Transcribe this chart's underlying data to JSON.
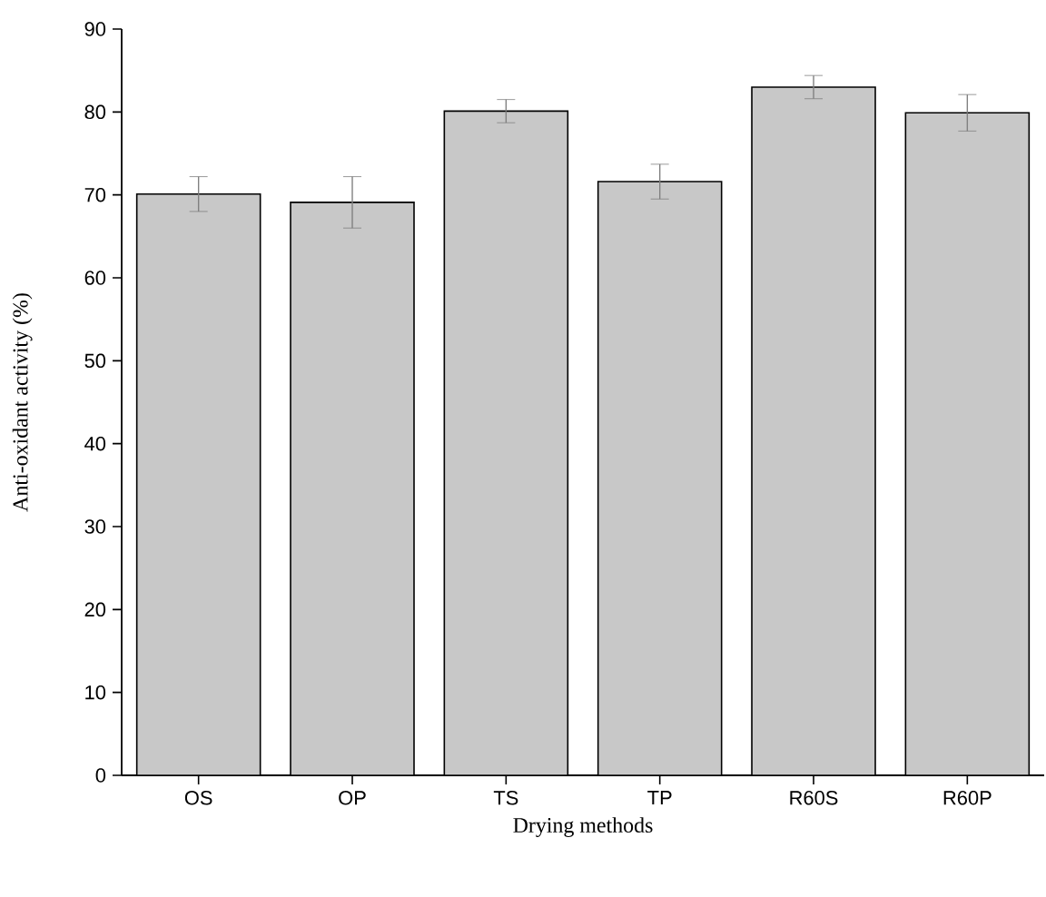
{
  "chart_data": {
    "type": "bar",
    "xlabel": "Drying methods",
    "ylabel": "Anti-oxidant activity (%)",
    "categories": [
      "OS",
      "OP",
      "TS",
      "TP",
      "R60S",
      "R60P"
    ],
    "values": [
      70.1,
      69.1,
      80.1,
      71.6,
      83.0,
      79.9
    ],
    "errors": [
      2.1,
      3.1,
      1.4,
      2.1,
      1.4,
      2.2
    ],
    "color": "#c8c8c8",
    "ylim": [
      0,
      90
    ],
    "yticks": [
      0,
      10,
      20,
      30,
      40,
      50,
      60,
      70,
      80,
      90
    ],
    "grid": false
  }
}
